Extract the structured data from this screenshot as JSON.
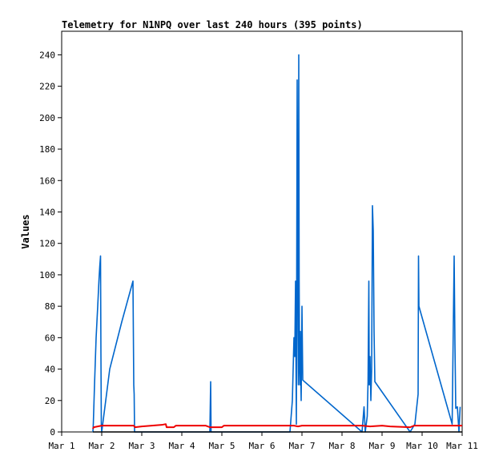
{
  "chart_data": {
    "type": "line",
    "title": "Telemetry for N1NPQ over last 240 hours (395 points)",
    "ylabel": "Values",
    "xlabel": "",
    "xlim": [
      1,
      11
    ],
    "ylim": [
      0,
      255
    ],
    "x_ticks": [
      {
        "value": 1,
        "label": "Mar 1"
      },
      {
        "value": 2,
        "label": "Mar 2"
      },
      {
        "value": 3,
        "label": "Mar 3"
      },
      {
        "value": 4,
        "label": "Mar 4"
      },
      {
        "value": 5,
        "label": "Mar 5"
      },
      {
        "value": 6,
        "label": "Mar 6"
      },
      {
        "value": 7,
        "label": "Mar 7"
      },
      {
        "value": 8,
        "label": "Mar 8"
      },
      {
        "value": 9,
        "label": "Mar 9"
      },
      {
        "value": 10,
        "label": "Mar 10"
      },
      {
        "value": 11,
        "label": "Mar 11"
      }
    ],
    "y_ticks": [
      0,
      20,
      40,
      60,
      80,
      100,
      120,
      140,
      160,
      180,
      200,
      220,
      240
    ],
    "grid": false,
    "legend": "none",
    "series": [
      {
        "color": "#0066cc",
        "points": [
          [
            1.78,
            0
          ],
          [
            1.79,
            5
          ],
          [
            1.82,
            30
          ],
          [
            1.86,
            60
          ],
          [
            1.9,
            80
          ],
          [
            1.93,
            96
          ],
          [
            1.95,
            105
          ],
          [
            1.97,
            112
          ],
          [
            1.98,
            50
          ],
          [
            1.99,
            5
          ],
          [
            2.0,
            0
          ],
          [
            2.05,
            10
          ],
          [
            2.2,
            40
          ],
          [
            2.5,
            70
          ],
          [
            2.78,
            96
          ],
          [
            2.8,
            30
          ],
          [
            2.81,
            24
          ],
          [
            2.82,
            0
          ],
          [
            3.5,
            0
          ],
          [
            4.7,
            0
          ],
          [
            4.72,
            32
          ],
          [
            4.73,
            0
          ],
          [
            6.7,
            0
          ],
          [
            6.76,
            20
          ],
          [
            6.78,
            40
          ],
          [
            6.8,
            60
          ],
          [
            6.82,
            48
          ],
          [
            6.84,
            96
          ],
          [
            6.86,
            5
          ],
          [
            6.88,
            224
          ],
          [
            6.89,
            150
          ],
          [
            6.9,
            64
          ],
          [
            6.91,
            30
          ],
          [
            6.92,
            240
          ],
          [
            6.93,
            96
          ],
          [
            6.94,
            40
          ],
          [
            6.95,
            30
          ],
          [
            6.96,
            64
          ],
          [
            6.97,
            35
          ],
          [
            6.98,
            20
          ],
          [
            7.0,
            80
          ],
          [
            7.02,
            33
          ],
          [
            8.5,
            0
          ],
          [
            8.55,
            16
          ],
          [
            8.58,
            0
          ],
          [
            8.63,
            10
          ],
          [
            8.65,
            32
          ],
          [
            8.67,
            96
          ],
          [
            8.68,
            30
          ],
          [
            8.7,
            48
          ],
          [
            8.72,
            20
          ],
          [
            8.74,
            40
          ],
          [
            8.76,
            144
          ],
          [
            8.78,
            128
          ],
          [
            8.8,
            64
          ],
          [
            8.82,
            32
          ],
          [
            9.7,
            0
          ],
          [
            9.82,
            5
          ],
          [
            9.9,
            24
          ],
          [
            9.91,
            112
          ],
          [
            9.92,
            80
          ],
          [
            10.75,
            5
          ],
          [
            10.8,
            112
          ],
          [
            10.82,
            56
          ],
          [
            10.84,
            15
          ],
          [
            10.88,
            16
          ],
          [
            10.92,
            0
          ],
          [
            10.95,
            16
          ]
        ]
      },
      {
        "color": "#ee0000",
        "points": [
          [
            1.78,
            2
          ],
          [
            1.8,
            3
          ],
          [
            2.0,
            4
          ],
          [
            2.8,
            4
          ],
          [
            2.83,
            3
          ],
          [
            3.0,
            3.5
          ],
          [
            3.5,
            4.5
          ],
          [
            3.6,
            5
          ],
          [
            3.62,
            3
          ],
          [
            3.8,
            3
          ],
          [
            3.85,
            4
          ],
          [
            4.6,
            4
          ],
          [
            4.7,
            3
          ],
          [
            5.0,
            3
          ],
          [
            5.05,
            4
          ],
          [
            6.8,
            4
          ],
          [
            6.9,
            3.5
          ],
          [
            7.0,
            4
          ],
          [
            8.5,
            4
          ],
          [
            8.7,
            3.5
          ],
          [
            9.0,
            4
          ],
          [
            9.2,
            3.5
          ],
          [
            9.7,
            3
          ],
          [
            9.8,
            4
          ],
          [
            10.0,
            4
          ],
          [
            11.0,
            4
          ]
        ]
      },
      {
        "color": "#000000",
        "points": [
          [
            1.78,
            0
          ],
          [
            11.0,
            0
          ]
        ]
      }
    ]
  }
}
